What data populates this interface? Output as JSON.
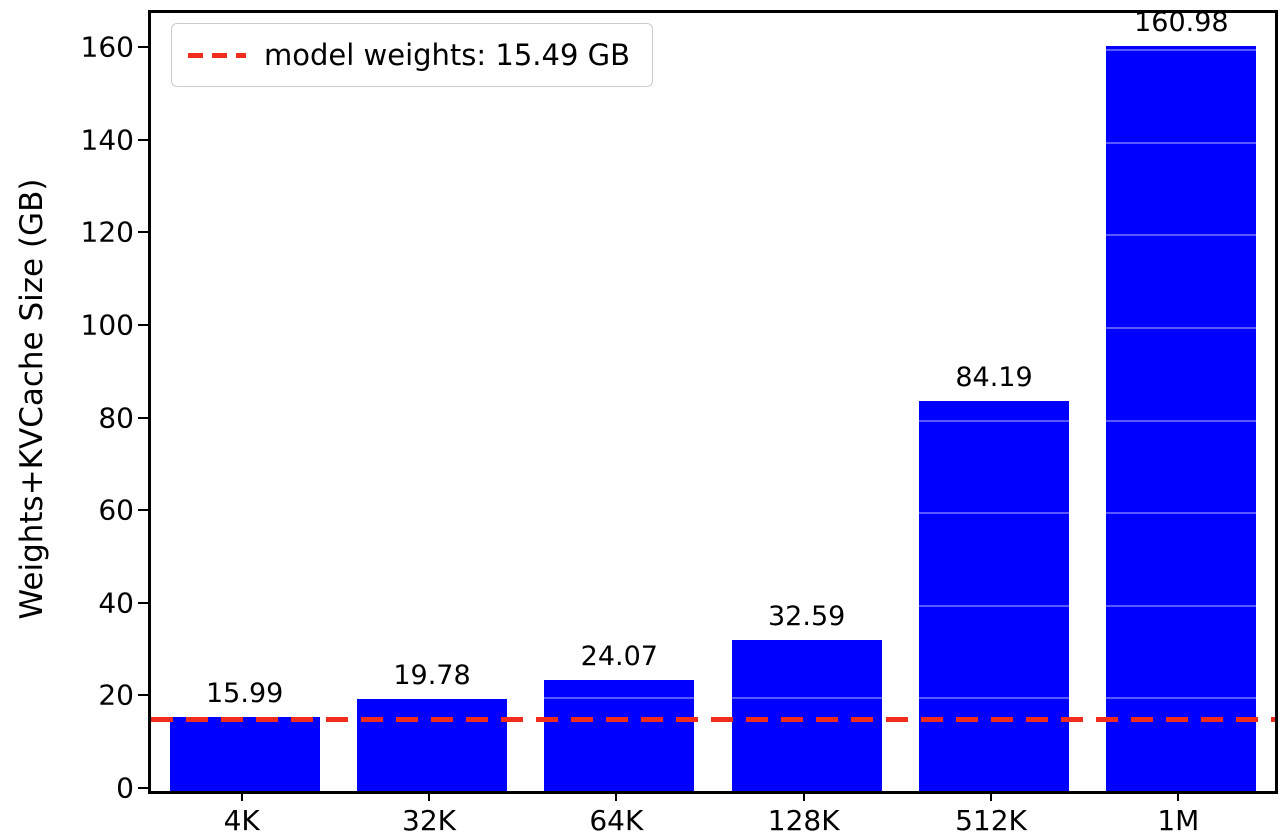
{
  "chart_data": {
    "type": "bar",
    "title": "",
    "categories": [
      "4K",
      "32K",
      "64K",
      "128K",
      "512K",
      "1M"
    ],
    "values": [
      15.99,
      19.78,
      24.07,
      32.59,
      84.19,
      160.98
    ],
    "value_labels": [
      "15.99",
      "19.78",
      "24.07",
      "32.59",
      "84.19",
      "160.98"
    ],
    "xlabel": "",
    "ylabel": "Weights+KVCache Size (GB)",
    "ylim": [
      0,
      168
    ],
    "yticks": [
      0,
      20,
      40,
      60,
      80,
      100,
      120,
      140,
      160
    ],
    "bar_color": "#0000ff",
    "bar_width_fraction": 0.8,
    "grid": false,
    "reference_line": {
      "value": 15.49,
      "color": "#f02d1d",
      "style": "dashed",
      "label": "model weights: 15.49 GB"
    },
    "legend": {
      "position": "upper left",
      "entries": [
        "model weights: 15.49 GB"
      ]
    }
  }
}
